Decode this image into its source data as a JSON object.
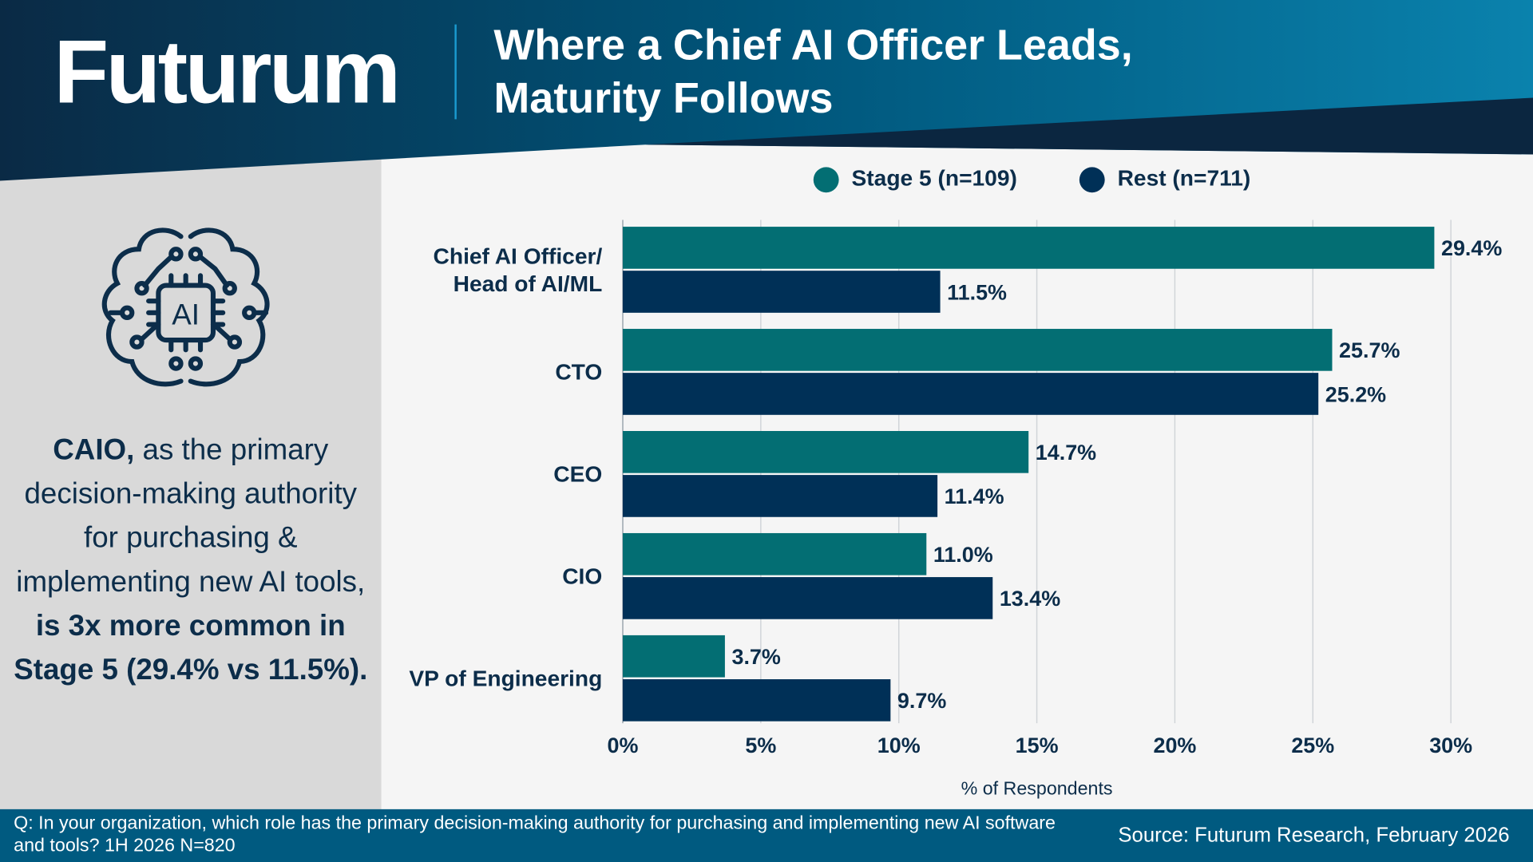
{
  "header": {
    "logo": "Futurum",
    "title_line1": "Where a Chief AI Officer Leads,",
    "title_line2": "Maturity Follows"
  },
  "callout": {
    "icon": "ai-brain-icon",
    "bold1": "CAIO,",
    "normal": " as the primary decision-making authority for purchasing & implementing new AI tools, ",
    "bold2": "is 3x more common in Stage 5 (29.4% vs 11.5%)."
  },
  "footer": {
    "question": "Q: In your organization, which role has the primary decision-making authority for purchasing and implementing new AI software and tools? 1H 2026 N=820",
    "source": "Source: Futurum Research, February 2026"
  },
  "colors": {
    "stage5": "#036e73",
    "rest": "#003057",
    "footer": "#005a80",
    "panel": "#d9d9d9"
  },
  "chart_data": {
    "type": "bar",
    "orientation": "horizontal",
    "categories": [
      "Chief AI Officer/\nHead of AI/ML",
      "CTO",
      "CEO",
      "CIO",
      "VP of Engineering"
    ],
    "series": [
      {
        "name": "Stage 5 (n=109)",
        "values": [
          29.4,
          25.7,
          14.7,
          11.0,
          3.7
        ],
        "labels": [
          "29.4%",
          "25.7%",
          "14.7%",
          "11.0%",
          "3.7%"
        ]
      },
      {
        "name": "Rest (n=711)",
        "values": [
          11.5,
          25.2,
          11.4,
          13.4,
          9.7
        ],
        "labels": [
          "11.5%",
          "25.2%",
          "11.4%",
          "13.4%",
          "9.7%"
        ]
      }
    ],
    "xlabel": "% of Respondents",
    "xlim": [
      0,
      30
    ],
    "xticks": [
      "0%",
      "5%",
      "10%",
      "15%",
      "20%",
      "25%",
      "30%"
    ],
    "grid": true,
    "legend": "top"
  }
}
